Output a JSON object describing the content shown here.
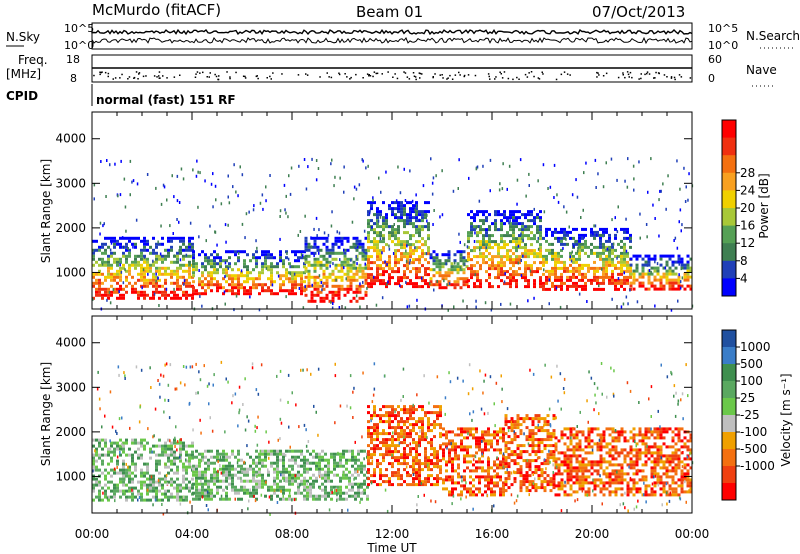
{
  "header": {
    "station": "McMurdo (fitACF)",
    "beam": "Beam 01",
    "date": "07/Oct/2013"
  },
  "top_panels": {
    "nsky_label": "N.Sky",
    "nsky_ticks": [
      "10^5",
      "10^0"
    ],
    "nsearch_label": "N.Search",
    "nsearch_ticks": [
      "10^5",
      "10^0"
    ],
    "freq_label_1": "Freq.",
    "freq_label_2": "[MHz]",
    "freq_ticks": [
      "18",
      "8"
    ],
    "nave_label": "Nave",
    "nave_ticks": [
      "60",
      "0"
    ],
    "cpid_label": "CPID",
    "cpid_value": "normal (fast) 151 RF"
  },
  "chart_data": [
    {
      "type": "heatmap",
      "title": "",
      "xlabel": "Time UT",
      "ylabel": "Slant Range [km]",
      "x_ticks": [
        "00:00",
        "04:00",
        "08:00",
        "12:00",
        "16:00",
        "20:00",
        "00:00"
      ],
      "x_range_hours": [
        0,
        24
      ],
      "ylim": [
        180,
        4600
      ],
      "y_ticks": [
        1000,
        2000,
        3000,
        4000
      ],
      "colorbar": {
        "label": "Power [dB]",
        "ticks": [
          "4",
          "8",
          "12",
          "16",
          "20",
          "24",
          "28"
        ],
        "colors": [
          "#0000ff",
          "#2040b8",
          "#3f7f52",
          "#55a055",
          "#a8c838",
          "#f0d000",
          "#f8a020",
          "#f47010",
          "#f03010",
          "#ff0000"
        ]
      },
      "echo_bands": [
        {
          "t0": 0.0,
          "t1": 4.0,
          "r0": 450,
          "r1": 1800
        },
        {
          "t0": 4.0,
          "t1": 8.5,
          "r0": 500,
          "r1": 1500
        },
        {
          "t0": 8.5,
          "t1": 11.0,
          "r0": 380,
          "r1": 1800
        },
        {
          "t0": 11.0,
          "t1": 13.5,
          "r0": 700,
          "r1": 2600
        },
        {
          "t0": 13.5,
          "t1": 15.0,
          "r0": 650,
          "r1": 1500
        },
        {
          "t0": 15.0,
          "t1": 18.0,
          "r0": 700,
          "r1": 2400
        },
        {
          "t0": 18.0,
          "t1": 21.5,
          "r0": 650,
          "r1": 2000
        },
        {
          "t0": 21.5,
          "t1": 24.0,
          "r0": 600,
          "r1": 1400
        }
      ]
    },
    {
      "type": "heatmap",
      "title": "",
      "xlabel": "Time UT",
      "ylabel": "Slant Range [km]",
      "x_ticks": [
        "00:00",
        "04:00",
        "08:00",
        "12:00",
        "16:00",
        "20:00",
        "00:00"
      ],
      "x_range_hours": [
        0,
        24
      ],
      "ylim": [
        180,
        4600
      ],
      "y_ticks": [
        1000,
        2000,
        3000,
        4000
      ],
      "colorbar": {
        "label": "Velocity [m s⁻¹]",
        "ticks": [
          "1000",
          "500",
          "100",
          "25",
          "-25",
          "-100",
          "-500",
          "-1000"
        ],
        "colors": [
          "#2050a0",
          "#3a7dc8",
          "#3f8f4f",
          "#5aa860",
          "#6bc84a",
          "#bfbfbf",
          "#f0a000",
          "#f47010",
          "#f04010",
          "#ff0000"
        ]
      },
      "echo_bands": [
        {
          "t0": 0.0,
          "t1": 4.0,
          "r0": 500,
          "r1": 1850
        },
        {
          "t0": 4.0,
          "t1": 11.0,
          "r0": 500,
          "r1": 1600
        },
        {
          "t0": 11.0,
          "t1": 14.0,
          "r0": 800,
          "r1": 2600
        },
        {
          "t0": 14.0,
          "t1": 16.5,
          "r0": 600,
          "r1": 2100
        },
        {
          "t0": 16.5,
          "t1": 18.5,
          "r0": 700,
          "r1": 2400
        },
        {
          "t0": 18.5,
          "t1": 24.0,
          "r0": 600,
          "r1": 2100
        }
      ]
    }
  ]
}
